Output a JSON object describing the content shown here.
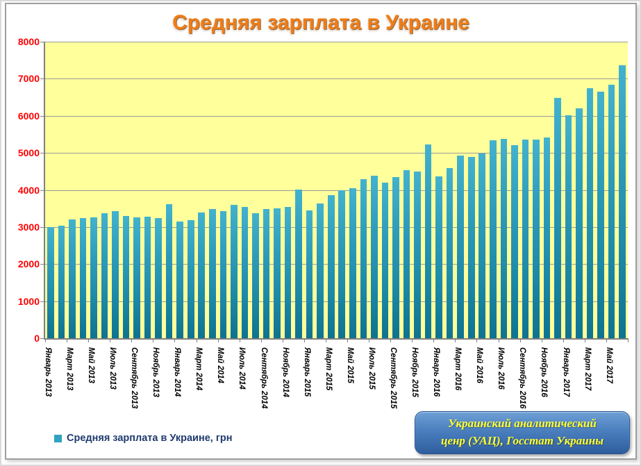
{
  "title": "Средняя зарплата в Украине",
  "legend": {
    "label": "Средняя зарплата в Украине, грн"
  },
  "source_box": {
    "line1": "Украинский аналитический",
    "line2": "ценр (УАЦ), Госстат Украины"
  },
  "colors": {
    "title": "#ee7d16",
    "plot_background": "#ffff9c",
    "bar_top": "#43b2ce",
    "bar_bottom": "#0e7390",
    "legend_swatch": "#2fa3be",
    "y_label": "#ff0000",
    "gridline": "#9a9a9a",
    "source_box_top": "#6fa0d6",
    "source_box_bottom": "#2f5e9e",
    "source_text": "#ffff33"
  },
  "chart_data": {
    "type": "bar",
    "title": "Средняя зарплата в Украине",
    "ylabel": "",
    "xlabel": "",
    "ylim": [
      0,
      8000
    ],
    "y_tick_step": 1000,
    "y_ticks": [
      0,
      1000,
      2000,
      3000,
      4000,
      5000,
      6000,
      7000,
      8000
    ],
    "grid": true,
    "legend_position": "bottom-left",
    "series_name": "Средняя зарплата в Украине, грн",
    "categories": [
      "Январь 2013",
      "Февраль 2013",
      "Март 2013",
      "Апрель 2013",
      "Май 2013",
      "Июнь 2013",
      "Июль 2013",
      "Август 2013",
      "Сентябрь 2013",
      "Октябрь 2013",
      "Ноябрь 2013",
      "Декабрь 2013",
      "Январь 2014",
      "Февраль 2014",
      "Март 2014",
      "Апрель 2014",
      "Май 2014",
      "Июнь 2014",
      "Июль 2014",
      "Август 2014",
      "Сентябрь 2014",
      "Октябрь 2014",
      "Ноябрь 2014",
      "Декабрь 2014",
      "Январь 2015",
      "Февраль 2015",
      "Март 2015",
      "Апрель 2015",
      "Май 2015",
      "Июнь 2015",
      "Июль 2015",
      "Август 2015",
      "Сентябрь 2015",
      "Октябрь 2015",
      "Ноябрь 2015",
      "Декабрь 2015",
      "Январь 2016",
      "Февраль 2016",
      "Март 2016",
      "Апрель 2016",
      "Май 2016",
      "Июнь 2016",
      "Июль 2016",
      "Август 2016",
      "Сентябрь 2016",
      "Октябрь 2016",
      "Ноябрь 2016",
      "Декабрь 2016",
      "Январь 2017",
      "Февраль 2017",
      "Март 2017",
      "Апрель 2017",
      "Май 2017",
      "Июнь 2017"
    ],
    "x_tick_labels_visible": [
      "Январь 2013",
      "Март 2013",
      "Май 2013",
      "Июль 2013",
      "Сентябрь 2013",
      "Ноябрь 2013",
      "Январь 2014",
      "Март 2014",
      "Май 2014",
      "Июль 2014",
      "Сентябрь 2014",
      "Ноябрь 2014",
      "Январь 2015",
      "Март 2015",
      "Май 2015",
      "Июль 2015",
      "Сентябрь 2015",
      "Ноябрь 2015",
      "Январь 2016",
      "Март 2016",
      "Май 2016",
      "Июль 2016",
      "Сентябрь 2016",
      "Ноябрь 2016",
      "Январь 2017",
      "Март 2017",
      "Май 2017"
    ],
    "label_interval": 2,
    "values": [
      3000,
      3044,
      3212,
      3233,
      3253,
      3380,
      3429,
      3304,
      3261,
      3283,
      3234,
      3619,
      3148,
      3189,
      3398,
      3480,
      3430,
      3600,
      3537,
      3368,
      3481,
      3509,
      3534,
      4012,
      3455,
      3633,
      3863,
      3998,
      4042,
      4299,
      4390,
      4205,
      4343,
      4532,
      4498,
      5230,
      4362,
      4585,
      4920,
      4895,
      4984,
      5337,
      5374,
      5202,
      5358,
      5350,
      5406,
      6475,
      6008,
      6209,
      6752,
      6659,
      6840,
      7360
    ]
  }
}
